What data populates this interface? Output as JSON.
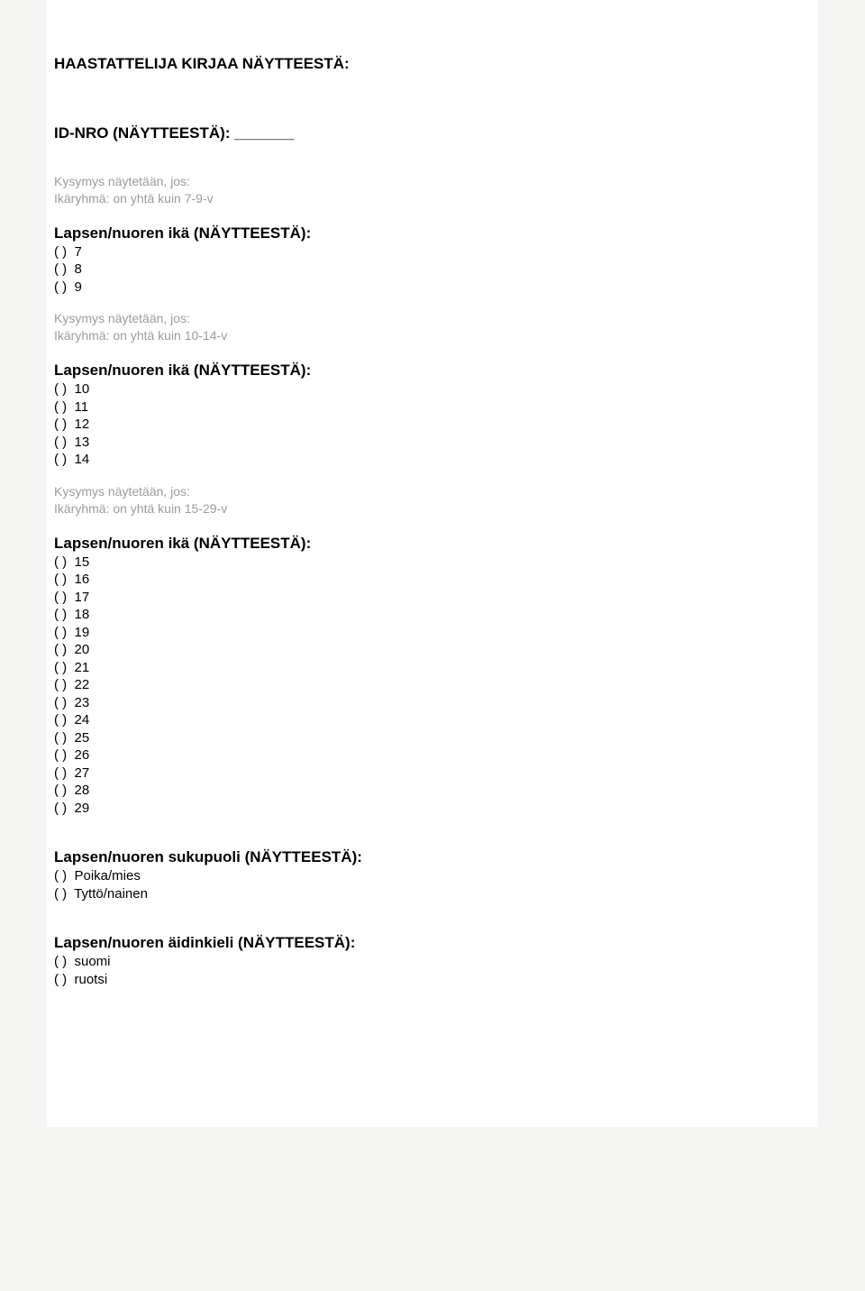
{
  "header_title": "HAASTATTELIJA KIRJAA NÄYTTEESTÄ:",
  "id_label": "ID-NRO (NÄYTTEESTÄ): _______",
  "cond1_line1": "Kysymys näytetään, jos:",
  "cond1_line2": "Ikäryhmä: on yhtä kuin 7-9-v",
  "q_age_title": "Lapsen/nuoren ikä (NÄYTTEESTÄ):",
  "age_group1_options": [
    "7",
    "8",
    "9"
  ],
  "cond2_line1": "Kysymys näytetään, jos:",
  "cond2_line2": "Ikäryhmä: on yhtä kuin 10-14-v",
  "age_group2_options": [
    "10",
    "11",
    "12",
    "13",
    "14"
  ],
  "cond3_line1": "Kysymys näytetään, jos:",
  "cond3_line2": "Ikäryhmä: on yhtä kuin 15-29-v",
  "age_group3_options": [
    "15",
    "16",
    "17",
    "18",
    "19",
    "20",
    "21",
    "22",
    "23",
    "24",
    "25",
    "26",
    "27",
    "28",
    "29"
  ],
  "q_gender_title": "Lapsen/nuoren sukupuoli (NÄYTTEESTÄ):",
  "gender_options": [
    "Poika/mies",
    "Tyttö/nainen"
  ],
  "q_lang_title": "Lapsen/nuoren äidinkieli (NÄYTTEESTÄ):",
  "lang_options": [
    "suomi",
    "ruotsi"
  ],
  "option_prefix": "( )  "
}
